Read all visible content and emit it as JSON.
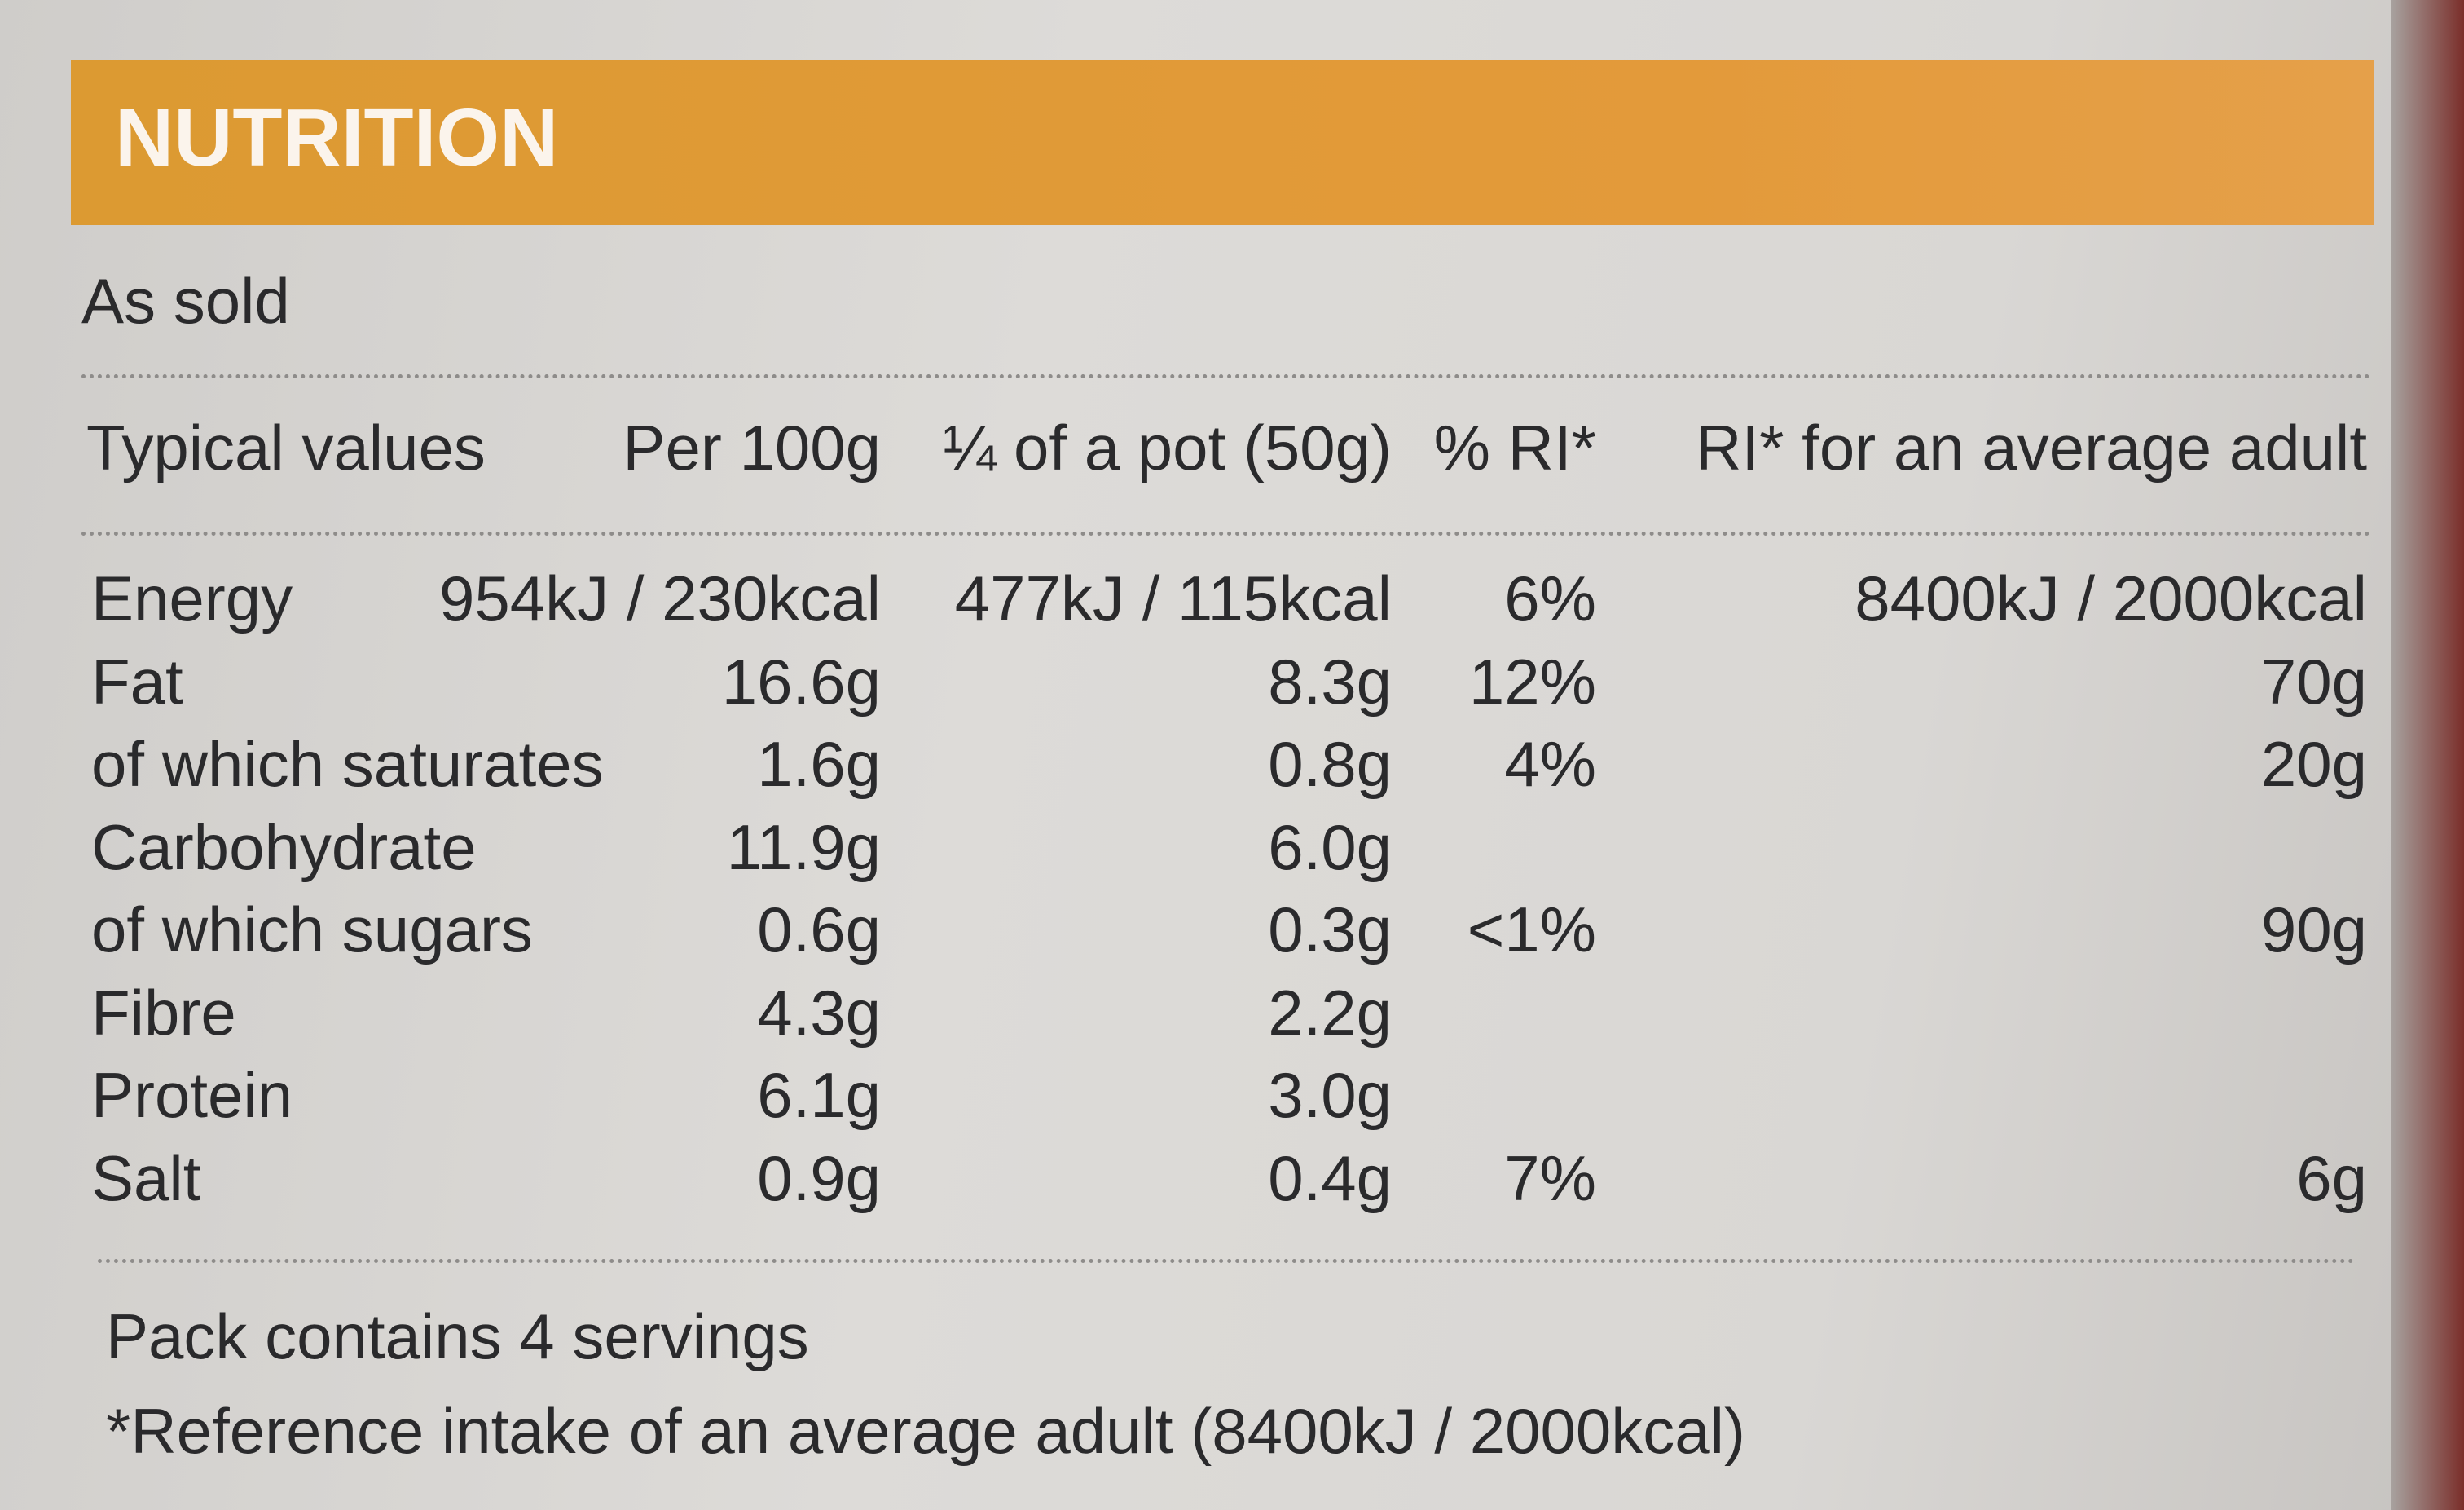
{
  "header": {
    "title": "NUTRITION",
    "subtitle": "As sold"
  },
  "table": {
    "headers": [
      "Typical values",
      "Per 100g",
      "¼ of a pot (50g)",
      "% RI*",
      "RI* for an average adult"
    ],
    "rows": [
      {
        "nutrient": "Energy",
        "per_100g": "954kJ / 230kcal",
        "per_serving": "477kJ / 115kcal",
        "ri_percent": "6%",
        "ri_adult": "8400kJ / 2000kcal"
      },
      {
        "nutrient": "Fat",
        "per_100g": "16.6g",
        "per_serving": "8.3g",
        "ri_percent": "12%",
        "ri_adult": "70g"
      },
      {
        "nutrient": "of which saturates",
        "per_100g": "1.6g",
        "per_serving": "0.8g",
        "ri_percent": "4%",
        "ri_adult": "20g"
      },
      {
        "nutrient": "Carbohydrate",
        "per_100g": "11.9g",
        "per_serving": "6.0g"
      },
      {
        "nutrient": "of which sugars",
        "per_100g": "0.6g",
        "per_serving": "0.3g",
        "ri_percent": "<1%",
        "ri_adult": "90g"
      },
      {
        "nutrient": "Fibre",
        "per_100g": "4.3g",
        "per_serving": "2.2g"
      },
      {
        "nutrient": "Protein",
        "per_100g": "6.1g",
        "per_serving": "3.0g"
      },
      {
        "nutrient": "Salt",
        "per_100g": "0.9g",
        "per_serving": "0.4g",
        "ri_percent": "7%",
        "ri_adult": "6g"
      }
    ]
  },
  "footer": {
    "servings": "Pack contains 4 servings",
    "note": "*Reference intake of an average adult (8400kJ / 2000kcal)"
  }
}
